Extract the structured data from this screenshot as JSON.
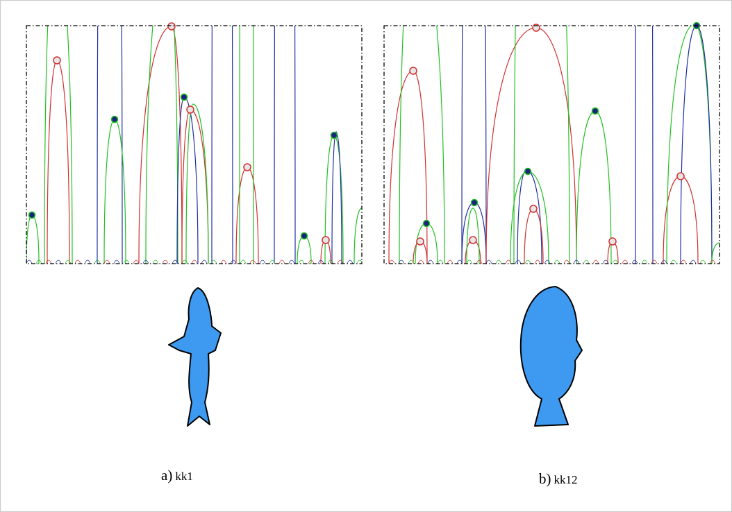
{
  "panels": [
    {
      "label": "a)",
      "name": "kk1"
    },
    {
      "label": "b)",
      "name": "kk12"
    }
  ]
}
